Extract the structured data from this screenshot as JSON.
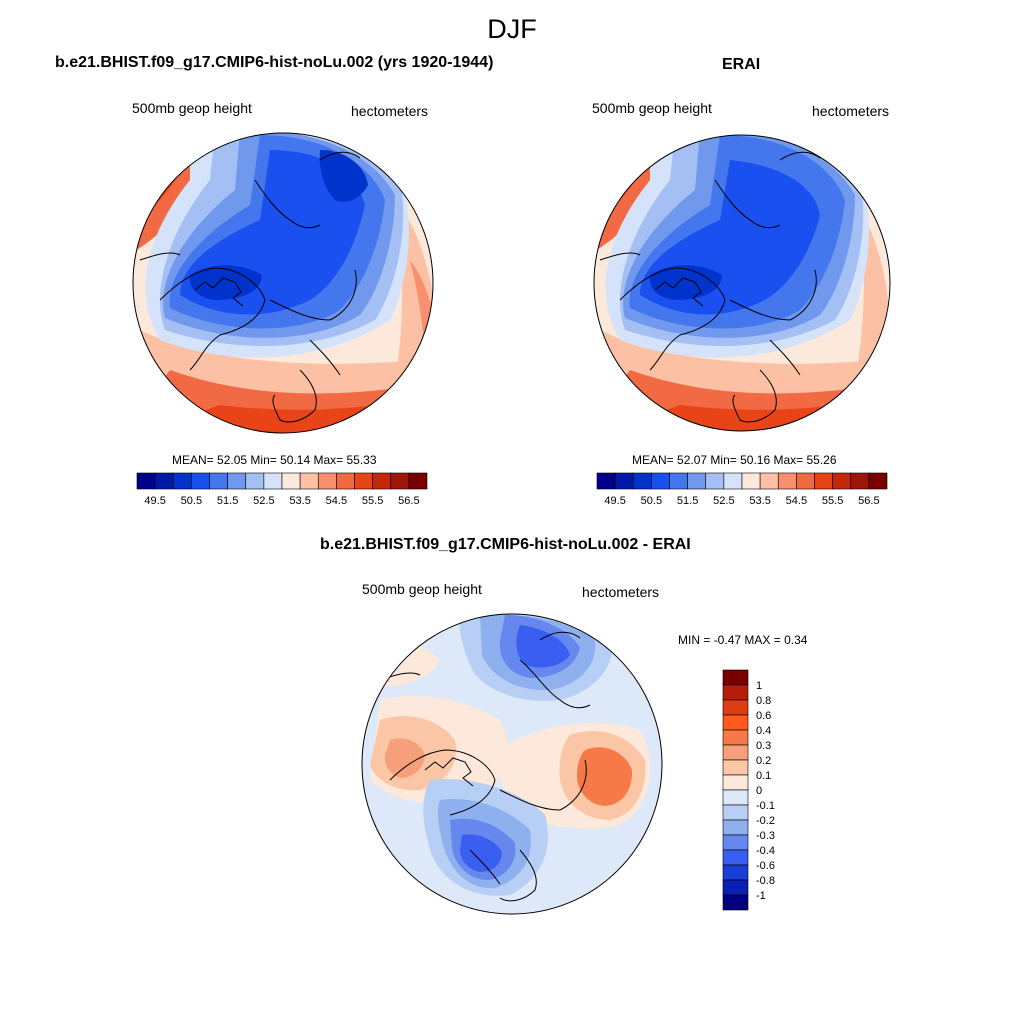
{
  "figure": {
    "season_title": "DJF"
  },
  "chart_data": [
    {
      "type": "heatmap",
      "projection": "north polar stereographic",
      "title": "b.e21.BHIST.f09_g17.CMIP6-hist-noLu.002 (yrs 1920-1944)",
      "left_string": "500mb geop height",
      "right_string": "hectometers",
      "stats": {
        "mean_label": "MEAN=",
        "mean": "52.05",
        "min_label": "Min=",
        "min": "50.14",
        "max_label": "Max=",
        "max": "55.33"
      },
      "colorbar": {
        "orientation": "horizontal",
        "labels": [
          "49.5",
          "50.5",
          "51.5",
          "52.5",
          "53.5",
          "54.5",
          "55.5",
          "56.5"
        ],
        "levels": [
          49.5,
          50.0,
          50.5,
          51.0,
          51.5,
          52.0,
          52.5,
          53.0,
          53.5,
          54.0,
          54.5,
          55.0,
          55.5,
          56.0,
          56.5
        ],
        "colors": [
          "#00008c",
          "#0018a8",
          "#0033cc",
          "#1a4ff0",
          "#4477ee",
          "#7099ee",
          "#a4bff3",
          "#d5e3fa",
          "#fde8dc",
          "#fcc0a4",
          "#f89070",
          "#f26a44",
          "#e84418",
          "#c42808",
          "#9e1408",
          "#780000"
        ]
      }
    },
    {
      "type": "heatmap",
      "projection": "north polar stereographic",
      "title": "ERAI",
      "left_string": "500mb geop height",
      "right_string": "hectometers",
      "stats": {
        "mean_label": "MEAN=",
        "mean": "52.07",
        "min_label": "Min=",
        "min": "50.16",
        "max_label": "Max=",
        "max": "55.26"
      },
      "colorbar": {
        "orientation": "horizontal",
        "labels": [
          "49.5",
          "50.5",
          "51.5",
          "52.5",
          "53.5",
          "54.5",
          "55.5",
          "56.5"
        ],
        "levels": [
          49.5,
          50.0,
          50.5,
          51.0,
          51.5,
          52.0,
          52.5,
          53.0,
          53.5,
          54.0,
          54.5,
          55.0,
          55.5,
          56.0,
          56.5
        ],
        "colors": [
          "#00008c",
          "#0018a8",
          "#0033cc",
          "#1a4ff0",
          "#4477ee",
          "#7099ee",
          "#a4bff3",
          "#d5e3fa",
          "#fde8dc",
          "#fcc0a4",
          "#f89070",
          "#f26a44",
          "#e84418",
          "#c42808",
          "#9e1408",
          "#780000"
        ]
      }
    },
    {
      "type": "heatmap",
      "projection": "north polar stereographic",
      "title": "b.e21.BHIST.f09_g17.CMIP6-hist-noLu.002 - ERAI",
      "left_string": "500mb geop height",
      "right_string": "hectometers",
      "stats": {
        "min_label": "MIN =",
        "min": "-0.47",
        "max_label": "MAX =",
        "max": "0.34"
      },
      "colorbar": {
        "orientation": "vertical",
        "labels": [
          "1",
          "0.8",
          "0.6",
          "0.4",
          "0.3",
          "0.2",
          "0.1",
          "0",
          "-0.1",
          "-0.2",
          "-0.3",
          "-0.4",
          "-0.6",
          "-0.8",
          "-1"
        ],
        "levels": [
          1,
          0.8,
          0.6,
          0.4,
          0.3,
          0.2,
          0.1,
          0,
          -0.1,
          -0.2,
          -0.3,
          -0.4,
          -0.6,
          -0.8,
          -1
        ],
        "colors_top_to_bottom": [
          "#780000",
          "#b41e08",
          "#e03c14",
          "#ff5a1e",
          "#f57a48",
          "#f5a07a",
          "#fac6a6",
          "#fde8dc",
          "#dde8f8",
          "#b8cff5",
          "#8eb0ef",
          "#6688ee",
          "#3a5ff0",
          "#1a3ed8",
          "#0a1eb4",
          "#000080"
        ]
      }
    }
  ]
}
